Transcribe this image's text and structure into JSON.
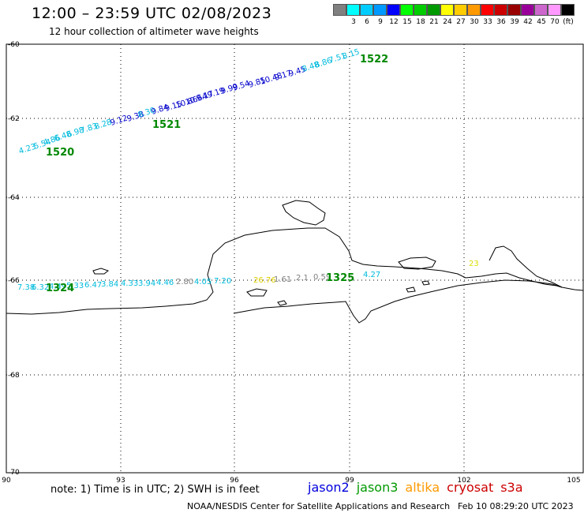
{
  "header": {
    "title": "12:00 – 23:59 UTC 02/08/2023",
    "subtitle": "12 hour collection of altimeter wave heights"
  },
  "color_scale": {
    "swatches": [
      {
        "color": "#808080",
        "label": ""
      },
      {
        "color": "#00ffff",
        "label": "3"
      },
      {
        "color": "#00ccff",
        "label": "6"
      },
      {
        "color": "#0099ff",
        "label": "9"
      },
      {
        "color": "#0000ff",
        "label": "12"
      },
      {
        "color": "#00ff00",
        "label": "15"
      },
      {
        "color": "#00cc00",
        "label": "18"
      },
      {
        "color": "#009900",
        "label": "21"
      },
      {
        "color": "#ffff00",
        "label": "24"
      },
      {
        "color": "#ffcc00",
        "label": "27"
      },
      {
        "color": "#ff9900",
        "label": "30"
      },
      {
        "color": "#ff0000",
        "label": "33"
      },
      {
        "color": "#cc0000",
        "label": "36"
      },
      {
        "color": "#990000",
        "label": "39"
      },
      {
        "color": "#990099",
        "label": "42"
      },
      {
        "color": "#cc66cc",
        "label": "45"
      },
      {
        "color": "#ff99ff",
        "label": "70"
      },
      {
        "color": "#000000",
        "label": "(ft)"
      }
    ]
  },
  "axes": {
    "x_ticks": [
      "90",
      "93",
      "96",
      "99",
      "102",
      "105"
    ],
    "y_ticks": [
      "-60",
      "-62",
      "-64",
      "-66",
      "-68",
      "-70"
    ]
  },
  "passes": [
    {
      "id": "1520",
      "color": "#009900"
    },
    {
      "id": "1521",
      "color": "#009900"
    },
    {
      "id": "1522",
      "color": "#009900"
    },
    {
      "id": "1324",
      "color": "#009900"
    },
    {
      "id": "1325",
      "color": "#009900"
    }
  ],
  "wave_points_upper": [
    {
      "text": "4.23",
      "color": "#00bbdd"
    },
    {
      "text": "5.54",
      "color": "#00bbdd"
    },
    {
      "text": "4.86",
      "color": "#00bbdd"
    },
    {
      "text": "6.48",
      "color": "#00bbdd"
    },
    {
      "text": "6.98",
      "color": "#00bbdd"
    },
    {
      "text": "7.83",
      "color": "#00bbdd"
    },
    {
      "text": "8.28",
      "color": "#00bbdd"
    },
    {
      "text": "9.12",
      "color": "#0000cc"
    },
    {
      "text": "9.38",
      "color": "#0000cc"
    },
    {
      "text": "8.30",
      "color": "#00bbdd"
    },
    {
      "text": "9.84",
      "color": "#0000cc"
    },
    {
      "text": "9.15",
      "color": "#0000cc"
    },
    {
      "text": "10.86",
      "color": "#0000cc"
    },
    {
      "text": "10.64",
      "color": "#0000cc"
    },
    {
      "text": "9.17",
      "color": "#0000cc"
    },
    {
      "text": "9.19",
      "color": "#0000cc"
    },
    {
      "text": "9.99",
      "color": "#0000cc"
    },
    {
      "text": "9.54",
      "color": "#0000cc"
    },
    {
      "text": "9.85",
      "color": "#0000cc"
    },
    {
      "text": "10.48",
      "color": "#0000cc"
    },
    {
      "text": "9.17",
      "color": "#0000cc"
    },
    {
      "text": "9.45",
      "color": "#0000cc"
    },
    {
      "text": "8.48",
      "color": "#00bbdd"
    },
    {
      "text": "8.86",
      "color": "#00bbdd"
    },
    {
      "text": "7.51",
      "color": "#00bbdd"
    },
    {
      "text": "8.15",
      "color": "#00bbdd"
    }
  ],
  "wave_points_lower": [
    {
      "text": "7.38",
      "color": "#00bbdd"
    },
    {
      "text": "6.32",
      "color": "#00bbdd"
    },
    {
      "text": "4.49",
      "color": "#00bbdd"
    },
    {
      "text": "5.33",
      "color": "#00bbdd"
    },
    {
      "text": "6.47",
      "color": "#00bbdd"
    },
    {
      "text": "3.84",
      "color": "#00bbdd"
    },
    {
      "text": "4.33",
      "color": "#00bbdd"
    },
    {
      "text": "3.94",
      "color": "#00bbdd"
    },
    {
      "text": "4.46",
      "color": "#00bbdd"
    },
    {
      "text": "2.80",
      "color": "#808080"
    },
    {
      "text": "4.05",
      "color": "#00bbdd"
    },
    {
      "text": "7.20",
      "color": "#00bbdd"
    },
    {
      "text": "26.76",
      "color": "#ddcc00"
    },
    {
      "text": "1.61",
      "color": "#808080"
    },
    {
      "text": "2.1",
      "color": "#808080"
    },
    {
      "text": "0.59",
      "color": "#808080"
    },
    {
      "text": "4.27",
      "color": "#00bbdd"
    },
    {
      "text": "23",
      "color": "#dddd00"
    }
  ],
  "footer": {
    "note": "note: 1) Time is in UTC; 2) SWH is in feet",
    "satellites": [
      {
        "name": "jason2",
        "color": "#0000dd"
      },
      {
        "name": "jason3",
        "color": "#009900"
      },
      {
        "name": "altika",
        "color": "#ff9900"
      },
      {
        "name": "cryosat",
        "color": "#cc0000"
      },
      {
        "name": "s3a",
        "color": "#cc0000"
      }
    ],
    "credit": "NOAA/NESDIS Center for Satellite Applications and Research",
    "timestamp": "Feb 10 08:29:20 UTC 2023"
  }
}
